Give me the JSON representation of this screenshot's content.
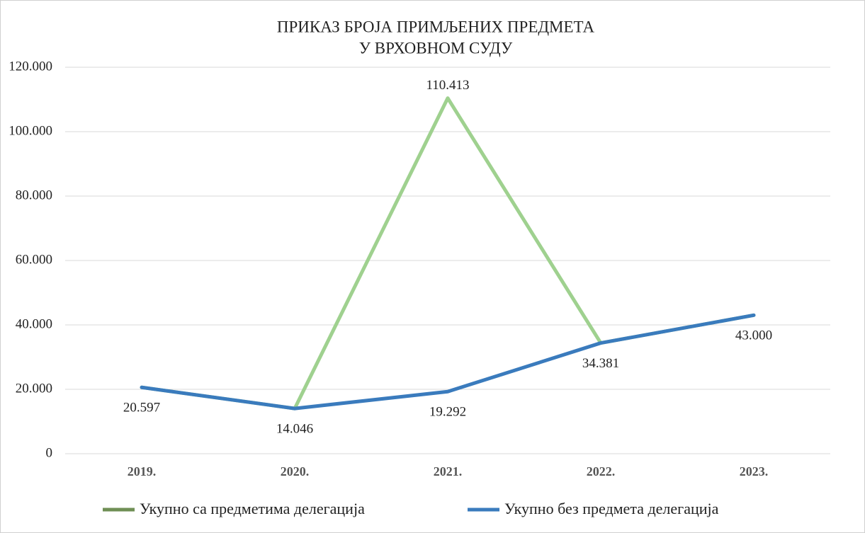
{
  "chart_data": {
    "type": "line",
    "title": [
      "ПРИКАЗ БРОЈА ПРИМЉЕНИХ  ПРЕДМЕТА",
      "У ВРХОВНОМ  СУДУ"
    ],
    "categories": [
      "2019.",
      "2020.",
      "2021.",
      "2022.",
      "2023."
    ],
    "series": [
      {
        "name": "Укупно са предметима делегација",
        "color": "#9fd18f",
        "legend_color": "#6f8f55",
        "values": [
          20597,
          14046,
          110413,
          34381,
          43000
        ],
        "value_labels": [
          null,
          null,
          "110.413",
          null,
          null
        ]
      },
      {
        "name": "Укупно без предмета делегација",
        "color": "#3a7bbd",
        "values": [
          20597,
          14046,
          19292,
          34381,
          43000
        ],
        "value_labels": [
          "20.597",
          "14.046",
          "19.292",
          "34.381",
          "43.000"
        ]
      }
    ],
    "ylim": [
      0,
      120000
    ],
    "yticks": [
      0,
      {
        "value": 20000,
        "label": "20.000"
      },
      {
        "value": 40000,
        "label": "40.000"
      },
      {
        "value": 60000,
        "label": "60.000"
      },
      {
        "value": 80000,
        "label": "80.000"
      },
      {
        "value": 100000,
        "label": "100.000"
      },
      {
        "value": 120000,
        "label": "120.000"
      }
    ],
    "grid": true,
    "legend": "bottom"
  }
}
